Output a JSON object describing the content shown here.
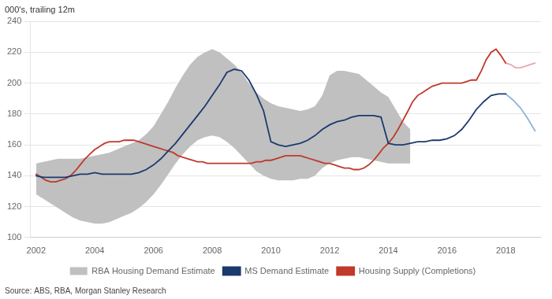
{
  "chart_data": {
    "type": "line",
    "ylabel": "000's, trailing 12m",
    "annotations": [
      "Source: ABS, RBA, Morgan Stanley Research"
    ],
    "xlim": [
      2001.8,
      2019.2
    ],
    "xticks": [
      2002,
      2004,
      2006,
      2008,
      2010,
      2012,
      2014,
      2016,
      2018
    ],
    "ylim": [
      100,
      240
    ],
    "yticks": [
      100,
      120,
      140,
      160,
      180,
      200,
      220,
      240
    ],
    "grid": "y",
    "legend": "bottom",
    "series": [
      {
        "name": "RBA Housing Demand Estimate",
        "type": "band",
        "color": "#c0c0c0",
        "x": [
          2002.0,
          2002.25,
          2002.5,
          2002.75,
          2003.0,
          2003.25,
          2003.5,
          2003.75,
          2004.0,
          2004.25,
          2004.5,
          2004.75,
          2005.0,
          2005.25,
          2005.5,
          2005.75,
          2006.0,
          2006.25,
          2006.5,
          2006.75,
          2007.0,
          2007.25,
          2007.5,
          2007.75,
          2008.0,
          2008.25,
          2008.5,
          2008.75,
          2009.0,
          2009.25,
          2009.5,
          2009.75,
          2010.0,
          2010.25,
          2010.5,
          2010.75,
          2011.0,
          2011.25,
          2011.5,
          2011.75,
          2012.0,
          2012.25,
          2012.5,
          2012.75,
          2013.0,
          2013.25,
          2013.5,
          2013.75,
          2014.0,
          2014.25,
          2014.5,
          2014.75
        ],
        "lower": [
          128,
          125,
          122,
          119,
          116,
          113,
          111,
          110,
          109,
          109,
          110,
          112,
          114,
          116,
          119,
          123,
          128,
          134,
          141,
          148,
          154,
          159,
          163,
          165,
          166,
          165,
          162,
          158,
          153,
          148,
          143,
          140,
          138,
          137,
          137,
          137,
          138,
          138,
          140,
          145,
          148,
          150,
          151,
          152,
          152,
          151,
          150,
          149,
          148,
          148,
          148,
          148
        ],
        "upper": [
          148,
          149,
          150,
          151,
          151,
          151,
          151,
          152,
          153,
          154,
          155,
          157,
          159,
          161,
          163,
          167,
          172,
          180,
          188,
          197,
          205,
          212,
          217,
          220,
          222,
          220,
          216,
          212,
          207,
          200,
          194,
          190,
          187,
          185,
          184,
          183,
          182,
          183,
          185,
          192,
          205,
          208,
          208,
          207,
          206,
          202,
          198,
          194,
          191,
          183,
          175,
          170
        ]
      },
      {
        "name": "MS Demand Estimate",
        "color": "#1a3a6e",
        "x": [
          2002.0,
          2002.25,
          2002.5,
          2002.75,
          2003.0,
          2003.25,
          2003.5,
          2003.75,
          2004.0,
          2004.25,
          2004.5,
          2004.75,
          2005.0,
          2005.25,
          2005.5,
          2005.75,
          2006.0,
          2006.25,
          2006.5,
          2006.75,
          2007.0,
          2007.25,
          2007.5,
          2007.75,
          2008.0,
          2008.25,
          2008.5,
          2008.75,
          2009.0,
          2009.25,
          2009.5,
          2009.75,
          2010.0,
          2010.25,
          2010.5,
          2010.75,
          2011.0,
          2011.25,
          2011.5,
          2011.75,
          2012.0,
          2012.25,
          2012.5,
          2012.75,
          2013.0,
          2013.25,
          2013.5,
          2013.75,
          2014.0,
          2014.25,
          2014.5,
          2014.75,
          2015.0,
          2015.25,
          2015.5,
          2015.75,
          2016.0,
          2016.25,
          2016.5,
          2016.75,
          2017.0,
          2017.25,
          2017.5,
          2017.75,
          2018.0
        ],
        "values": [
          140,
          139,
          139,
          139,
          139,
          140,
          141,
          141,
          142,
          141,
          141,
          141,
          141,
          141,
          142,
          144,
          147,
          151,
          156,
          161,
          167,
          173,
          179,
          185,
          192,
          199,
          207,
          209,
          208,
          202,
          193,
          182,
          162,
          160,
          159,
          160,
          161,
          163,
          166,
          170,
          173,
          175,
          176,
          178,
          179,
          179,
          179,
          178,
          161,
          160,
          160,
          161,
          162,
          162,
          163,
          163,
          164,
          166,
          170,
          176,
          183,
          188,
          192,
          193,
          193
        ]
      },
      {
        "color": "#8fb4d8",
        "x": [
          2018.0,
          2018.25,
          2018.5,
          2018.75,
          2019.0
        ],
        "values": [
          193,
          189,
          184,
          177,
          169
        ]
      },
      {
        "name": "Housing Supply (Completions)",
        "color": "#c0392b",
        "x": [
          2002.0,
          2002.17,
          2002.33,
          2002.5,
          2002.67,
          2002.83,
          2003.0,
          2003.17,
          2003.33,
          2003.5,
          2003.67,
          2003.83,
          2004.0,
          2004.17,
          2004.33,
          2004.5,
          2004.67,
          2004.83,
          2005.0,
          2005.17,
          2005.33,
          2005.5,
          2005.67,
          2005.83,
          2006.0,
          2006.17,
          2006.33,
          2006.5,
          2006.67,
          2006.83,
          2007.0,
          2007.17,
          2007.33,
          2007.5,
          2007.67,
          2007.83,
          2008.0,
          2008.17,
          2008.33,
          2008.5,
          2008.67,
          2008.83,
          2009.0,
          2009.17,
          2009.33,
          2009.5,
          2009.67,
          2009.83,
          2010.0,
          2010.17,
          2010.33,
          2010.5,
          2010.67,
          2010.83,
          2011.0,
          2011.17,
          2011.33,
          2011.5,
          2011.67,
          2011.83,
          2012.0,
          2012.17,
          2012.33,
          2012.5,
          2012.67,
          2012.83,
          2013.0,
          2013.17,
          2013.33,
          2013.5,
          2013.67,
          2013.83,
          2014.0,
          2014.17,
          2014.33,
          2014.5,
          2014.67,
          2014.83,
          2015.0,
          2015.17,
          2015.33,
          2015.5,
          2015.67,
          2015.83,
          2016.0,
          2016.17,
          2016.33,
          2016.5,
          2016.67,
          2016.83,
          2017.0,
          2017.17,
          2017.33,
          2017.5,
          2017.67,
          2017.83,
          2018.0
        ],
        "values": [
          141,
          139,
          137,
          136,
          136,
          137,
          138,
          140,
          143,
          147,
          151,
          154,
          157,
          159,
          161,
          162,
          162,
          162,
          163,
          163,
          163,
          162,
          161,
          160,
          159,
          158,
          157,
          156,
          155,
          153,
          152,
          151,
          150,
          149,
          149,
          148,
          148,
          148,
          148,
          148,
          148,
          148,
          148,
          148,
          148,
          149,
          149,
          150,
          150,
          151,
          152,
          153,
          153,
          153,
          153,
          152,
          151,
          150,
          149,
          148,
          148,
          147,
          146,
          145,
          145,
          144,
          144,
          145,
          147,
          150,
          154,
          158,
          161,
          165,
          170,
          176,
          182,
          188,
          192,
          194,
          196,
          198,
          199,
          200,
          200,
          200,
          200,
          200,
          201,
          202,
          202,
          208,
          215,
          220,
          222,
          218,
          213
        ]
      },
      {
        "color": "#e8a8a8",
        "x": [
          2018.0,
          2018.17,
          2018.33,
          2018.5,
          2018.67,
          2018.83,
          2019.0
        ],
        "values": [
          213,
          212,
          210,
          210,
          211,
          212,
          213
        ]
      }
    ]
  }
}
